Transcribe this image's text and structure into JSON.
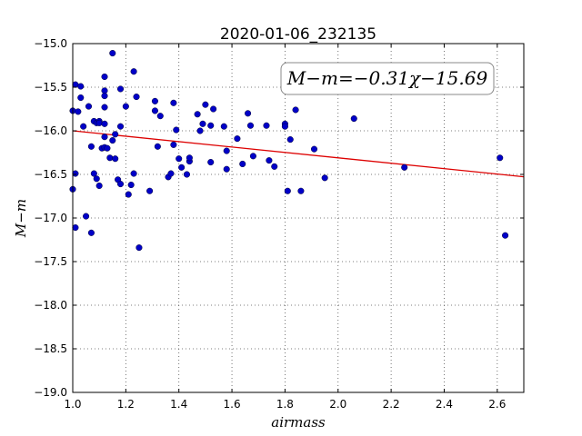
{
  "chart_data": {
    "type": "scatter",
    "title": "2020-01-06_232135",
    "xlabel": "airmass",
    "ylabel": "M−m",
    "xlim": [
      1.0,
      2.7
    ],
    "ylim": [
      -19.0,
      -15.0
    ],
    "y_inverted": true,
    "grid": true,
    "xticks": [
      "1.0",
      "1.2",
      "1.4",
      "1.6",
      "1.8",
      "2.0",
      "2.2",
      "2.4",
      "2.6"
    ],
    "yticks": [
      "−15.0",
      "−15.5",
      "−16.0",
      "−16.5",
      "−17.0",
      "−17.5",
      "−18.0",
      "−18.5",
      "−19.0"
    ],
    "annotation": "M−m=−0.31χ−15.69",
    "fit": {
      "slope": -0.31,
      "intercept": -15.69,
      "color": "#dd0000"
    },
    "point_color": "#0000c8",
    "points": [
      [
        1.0,
        -15.77
      ],
      [
        1.0,
        -16.67
      ],
      [
        1.01,
        -16.49
      ],
      [
        1.01,
        -15.47
      ],
      [
        1.01,
        -17.11
      ],
      [
        1.02,
        -15.78
      ],
      [
        1.03,
        -15.49
      ],
      [
        1.03,
        -15.62
      ],
      [
        1.04,
        -15.95
      ],
      [
        1.05,
        -16.98
      ],
      [
        1.06,
        -15.72
      ],
      [
        1.07,
        -17.17
      ],
      [
        1.07,
        -16.18
      ],
      [
        1.08,
        -15.89
      ],
      [
        1.08,
        -16.49
      ],
      [
        1.09,
        -15.91
      ],
      [
        1.09,
        -16.55
      ],
      [
        1.1,
        -16.63
      ],
      [
        1.1,
        -15.89
      ],
      [
        1.1,
        -15.91
      ],
      [
        1.11,
        -16.2
      ],
      [
        1.12,
        -15.54
      ],
      [
        1.12,
        -15.38
      ],
      [
        1.12,
        -15.6
      ],
      [
        1.12,
        -16.07
      ],
      [
        1.12,
        -15.92
      ],
      [
        1.12,
        -16.19
      ],
      [
        1.12,
        -15.73
      ],
      [
        1.13,
        -16.2
      ],
      [
        1.14,
        -16.31
      ],
      [
        1.15,
        -15.11
      ],
      [
        1.15,
        -16.11
      ],
      [
        1.16,
        -16.04
      ],
      [
        1.16,
        -16.32
      ],
      [
        1.17,
        -16.56
      ],
      [
        1.18,
        -16.61
      ],
      [
        1.18,
        -15.95
      ],
      [
        1.18,
        -15.52
      ],
      [
        1.2,
        -15.72
      ],
      [
        1.21,
        -16.73
      ],
      [
        1.22,
        -16.62
      ],
      [
        1.23,
        -15.32
      ],
      [
        1.23,
        -16.49
      ],
      [
        1.24,
        -15.61
      ],
      [
        1.25,
        -17.34
      ],
      [
        1.29,
        -16.69
      ],
      [
        1.31,
        -15.66
      ],
      [
        1.31,
        -15.77
      ],
      [
        1.32,
        -16.18
      ],
      [
        1.33,
        -15.83
      ],
      [
        1.36,
        -16.53
      ],
      [
        1.37,
        -16.49
      ],
      [
        1.38,
        -16.16
      ],
      [
        1.38,
        -15.68
      ],
      [
        1.39,
        -15.99
      ],
      [
        1.4,
        -16.32
      ],
      [
        1.41,
        -16.42
      ],
      [
        1.43,
        -16.5
      ],
      [
        1.44,
        -16.35
      ],
      [
        1.44,
        -16.31
      ],
      [
        1.47,
        -15.81
      ],
      [
        1.48,
        -16.0
      ],
      [
        1.49,
        -15.92
      ],
      [
        1.5,
        -15.7
      ],
      [
        1.52,
        -15.94
      ],
      [
        1.52,
        -16.36
      ],
      [
        1.53,
        -15.75
      ],
      [
        1.57,
        -15.95
      ],
      [
        1.58,
        -16.23
      ],
      [
        1.58,
        -16.44
      ],
      [
        1.62,
        -16.09
      ],
      [
        1.64,
        -16.38
      ],
      [
        1.66,
        -15.8
      ],
      [
        1.67,
        -15.94
      ],
      [
        1.68,
        -16.29
      ],
      [
        1.73,
        -15.94
      ],
      [
        1.74,
        -16.34
      ],
      [
        1.76,
        -16.41
      ],
      [
        1.8,
        -15.92
      ],
      [
        1.8,
        -15.95
      ],
      [
        1.81,
        -16.69
      ],
      [
        1.82,
        -16.1
      ],
      [
        1.84,
        -15.76
      ],
      [
        1.86,
        -16.69
      ],
      [
        1.91,
        -16.21
      ],
      [
        1.95,
        -16.54
      ],
      [
        2.06,
        -15.86
      ],
      [
        2.25,
        -16.42
      ],
      [
        2.61,
        -16.31
      ],
      [
        2.63,
        -17.2
      ]
    ]
  }
}
